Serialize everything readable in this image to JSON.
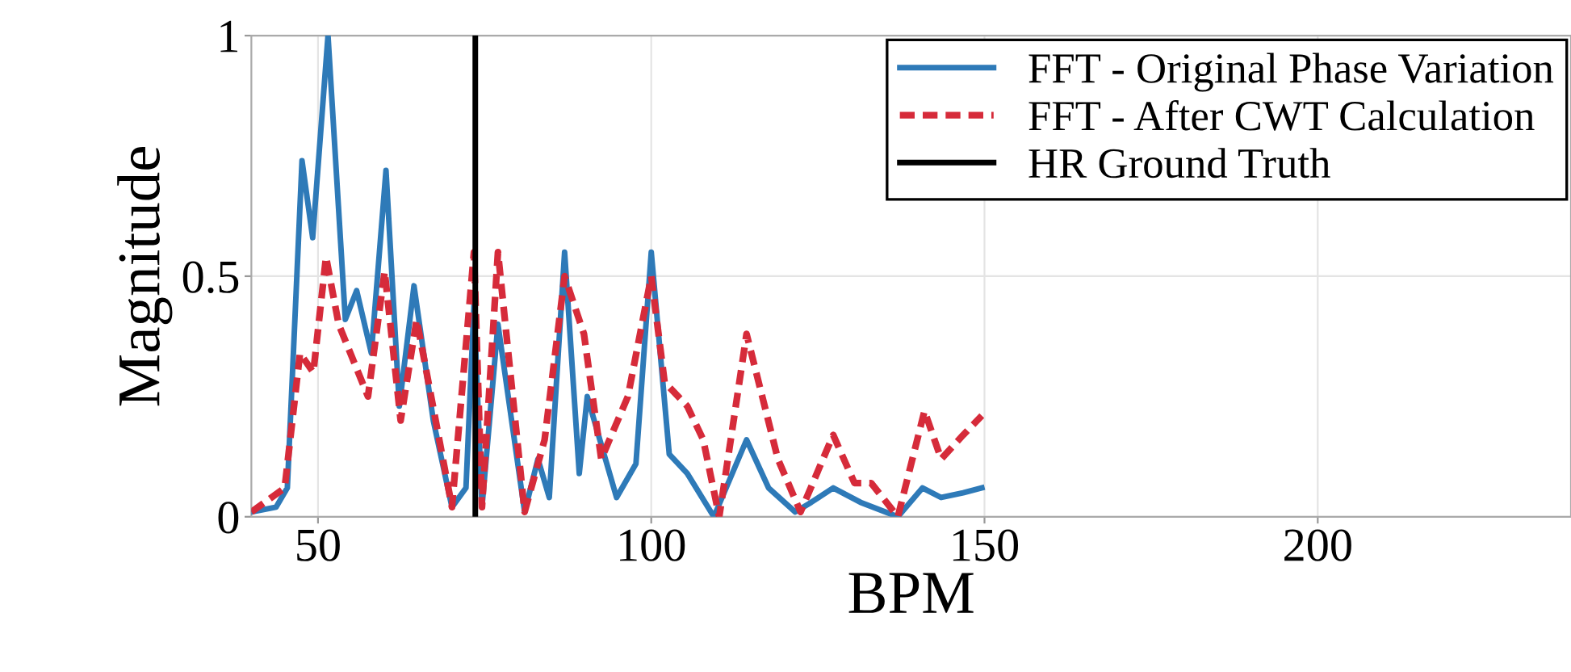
{
  "chart_data": {
    "type": "line",
    "xlabel": "BPM",
    "ylabel": "Magnitude",
    "xlim": [
      40,
      238
    ],
    "ylim": [
      0,
      1
    ],
    "xticks": [
      50,
      100,
      150,
      200
    ],
    "yticks": [
      0,
      {
        "value": 0.5,
        "label": "0.5"
      },
      1
    ],
    "grid": true,
    "legend": "top right",
    "marker": "none",
    "series": [
      {
        "name": "FFT - Original Phase Variation",
        "color": "#2e7ab8",
        "line_style": "solid",
        "x": [
          40,
          43.7,
          45.4,
          47.6,
          49.2,
          51.5,
          54.1,
          55.8,
          58,
          60.2,
          62.2,
          64.4,
          67.3,
          70.1,
          72.2,
          73.4,
          74.6,
          77,
          81,
          83,
          84.7,
          87,
          89.2,
          90.4,
          94.8,
          97.7,
          100,
          102.7,
          105.4,
          109.4,
          114.3,
          117.6,
          121.6,
          124,
          127.3,
          131.4,
          137,
          140.7,
          143.5,
          146.8,
          149.6
        ],
        "values": [
          0.01,
          0.02,
          0.06,
          0.74,
          0.58,
          1.0,
          0.41,
          0.47,
          0.34,
          0.72,
          0.23,
          0.48,
          0.2,
          0.02,
          0.06,
          0.44,
          0.02,
          0.4,
          0.01,
          0.12,
          0.04,
          0.55,
          0.09,
          0.25,
          0.04,
          0.11,
          0.55,
          0.13,
          0.09,
          0.0,
          0.16,
          0.06,
          0.01,
          0.03,
          0.06,
          0.03,
          0.0,
          0.06,
          0.04,
          0.05,
          0.06
        ]
      },
      {
        "name": "FFT - After CWT Calculation",
        "color": "#d62b3a",
        "line_style": "dashed",
        "x": [
          40,
          45,
          47.3,
          49.3,
          51.2,
          53.1,
          57.5,
          60,
          62.4,
          64.8,
          70.1,
          73.4,
          74.6,
          77,
          81,
          84,
          87,
          89.9,
          92.5,
          96.5,
          100,
          102,
          105.4,
          107.8,
          110.2,
          114.3,
          119,
          122.4,
          127.3,
          130.5,
          133,
          137,
          141,
          143.5,
          146.8,
          149.6
        ],
        "values": [
          0.01,
          0.06,
          0.34,
          0.3,
          0.54,
          0.4,
          0.25,
          0.51,
          0.2,
          0.41,
          0.02,
          0.55,
          0.02,
          0.55,
          0.01,
          0.16,
          0.5,
          0.38,
          0.12,
          0.25,
          0.5,
          0.28,
          0.23,
          0.16,
          0.0,
          0.38,
          0.12,
          0.01,
          0.17,
          0.07,
          0.07,
          0.0,
          0.22,
          0.12,
          0.17,
          0.21
        ]
      },
      {
        "name": "HR Ground Truth",
        "color": "#000000",
        "line_style": "solid",
        "x": [
          73.6,
          73.6
        ],
        "values": [
          0,
          1
        ]
      }
    ]
  }
}
